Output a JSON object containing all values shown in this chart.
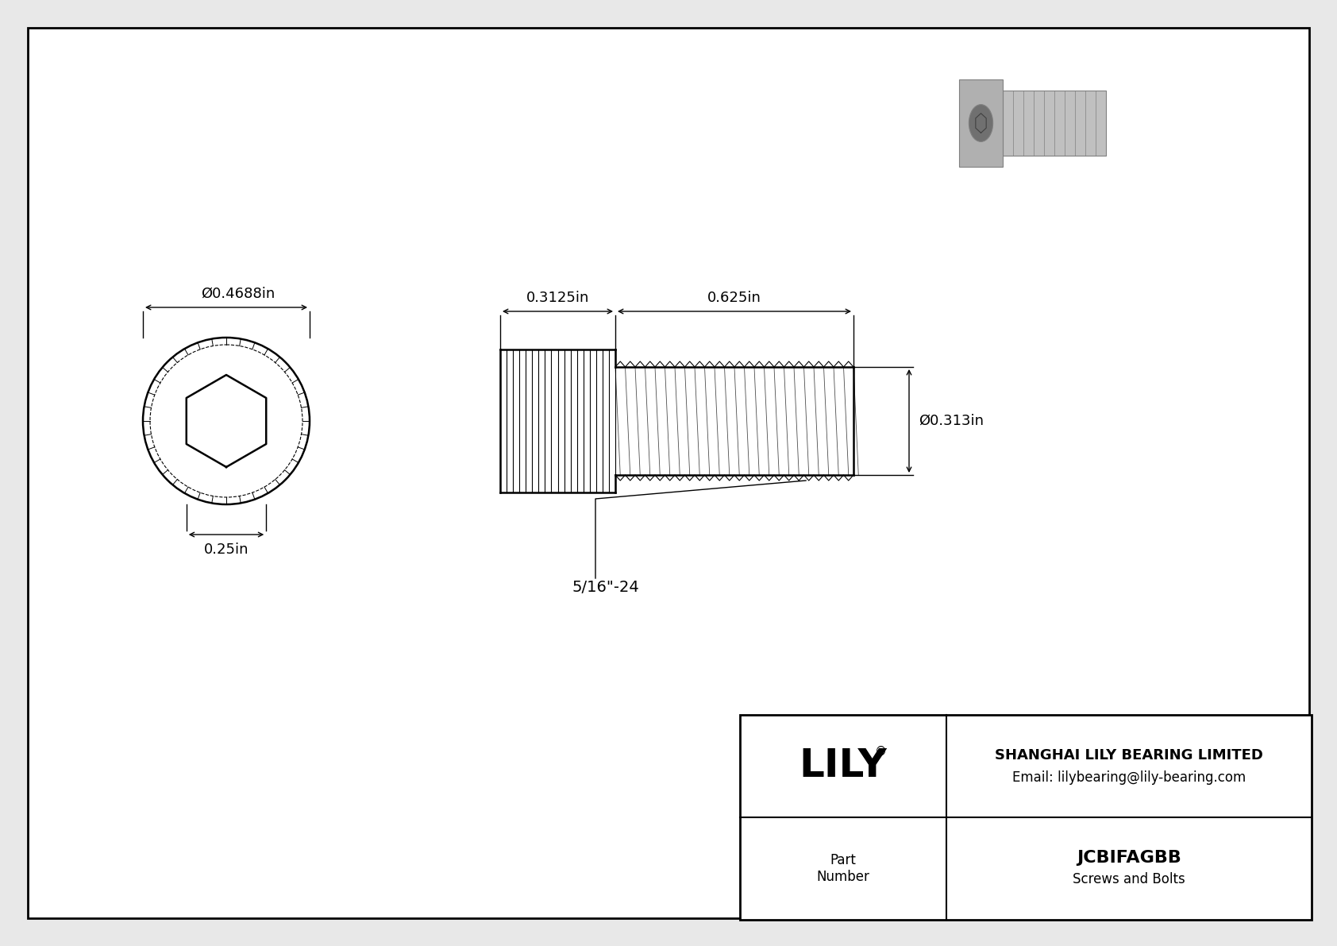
{
  "bg_color": "#e8e8e8",
  "drawing_bg": "#ffffff",
  "border_color": "#000000",
  "line_color": "#000000",
  "title_company": "SHANGHAI LILY BEARING LIMITED",
  "title_email": "Email: lilybearing@lily-bearing.com",
  "part_label": "Part\nNumber",
  "part_number": "JCBIFAGBB",
  "part_category": "Screws and Bolts",
  "logo_text": "LILY",
  "dim_head_diameter": "Ø0.4688in",
  "dim_head_height": "0.25in",
  "dim_body_length": "0.625in",
  "dim_head_section": "0.3125in",
  "dim_thread_diameter": "Ø0.313in",
  "dim_thread_label": "5/16\"-24",
  "font_size_dims": 13,
  "font_size_logo": 36,
  "font_size_company": 13,
  "font_size_part": 16,
  "font_size_label": 12
}
